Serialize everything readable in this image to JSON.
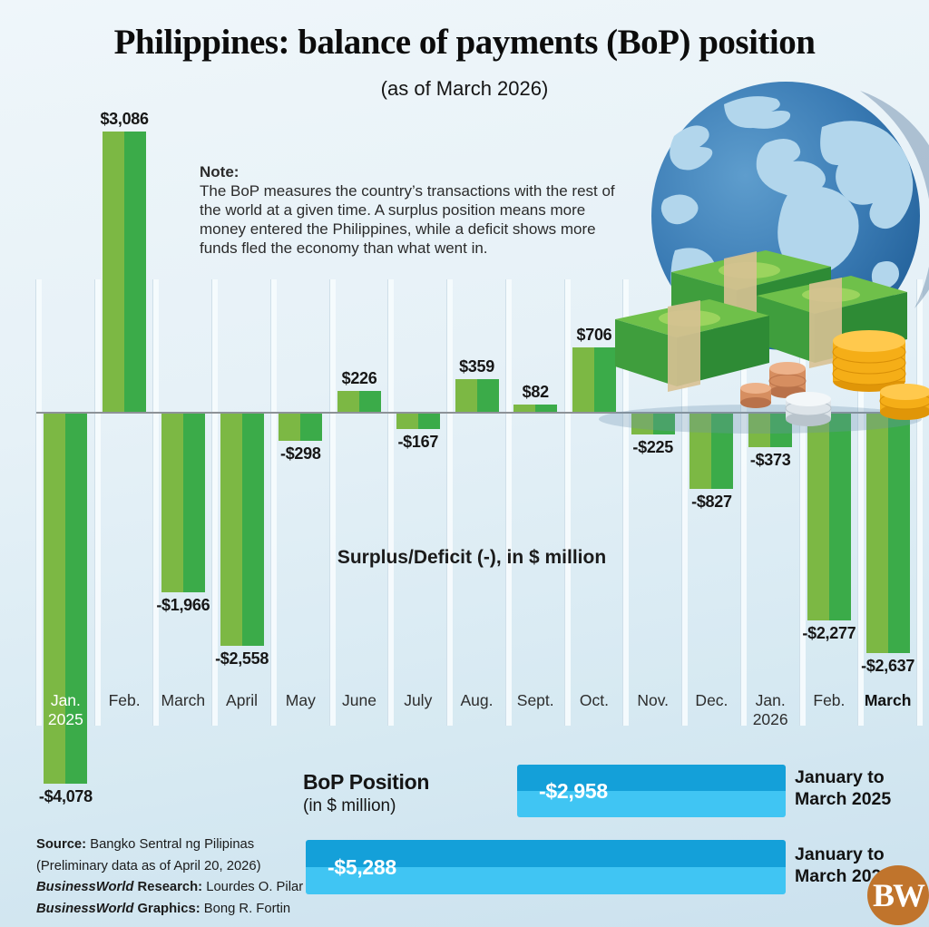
{
  "header": {
    "title": "Philippines: balance of payments (BoP) position",
    "subtitle": "(as of March 2026)"
  },
  "note": {
    "heading": "Note:",
    "body": "The BoP measures the country’s transactions with the rest of the world at a given time. A surplus position means more money entered the Philippines, while a deficit shows more funds fled the economy than what went in."
  },
  "chart_data": {
    "type": "bar",
    "title": "Surplus/Deficit (-), in $ million",
    "categories": [
      "Jan. 2025",
      "Feb.",
      "March",
      "April",
      "May",
      "June",
      "July",
      "Aug.",
      "Sept.",
      "Oct.",
      "Nov.",
      "Dec.",
      "Jan. 2026",
      "Feb.",
      "March"
    ],
    "values": [
      -4078,
      3086,
      -1966,
      -2558,
      -298,
      226,
      -167,
      359,
      82,
      706,
      -225,
      -827,
      -373,
      -2277,
      -2637
    ],
    "value_labels": [
      "-$4,078",
      "$3,086",
      "-$1,966",
      "-$2,558",
      "-$298",
      "$226",
      "-$167",
      "$359",
      "$82",
      "$706",
      "-$225",
      "-$827",
      "-$373",
      "-$2,277",
      "-$2,637"
    ],
    "months_display": [
      {
        "line1": "Jan.",
        "line2": "2025",
        "white": true
      },
      {
        "line1": "Feb."
      },
      {
        "line1": "March"
      },
      {
        "line1": "April"
      },
      {
        "line1": "May"
      },
      {
        "line1": "June"
      },
      {
        "line1": "July"
      },
      {
        "line1": "Aug."
      },
      {
        "line1": "Sept."
      },
      {
        "line1": "Oct."
      },
      {
        "line1": "Nov."
      },
      {
        "line1": "Dec."
      },
      {
        "line1": "Jan.",
        "line2": "2026"
      },
      {
        "line1": "Feb."
      },
      {
        "line1": "March",
        "bold": true
      }
    ],
    "ylim": [
      -4500,
      3500
    ],
    "grid": "vertical-column-separators",
    "colors": {
      "bar_light_green": "#7cb844",
      "bar_dark_green": "#3bab49",
      "zero_line": "#8d9297",
      "label_text": "#171717"
    }
  },
  "summary": {
    "label": "BoP Position",
    "sublabel": "(in $ million)",
    "bar_color_top": "#14a0d9",
    "bar_color_bottom": "#40c5f3",
    "rows": [
      {
        "amount": -2958,
        "value_label": "-$2,958",
        "period_line1": "January to",
        "period_line2": "March 2025"
      },
      {
        "amount": -5288,
        "value_label": "-$5,288",
        "period_line1": "January to",
        "period_line2": "March 2026"
      }
    ]
  },
  "source": {
    "lines": [
      [
        {
          "t": "Source:",
          "b": true
        },
        {
          "t": " Bangko Sentral ng Pilipinas"
        }
      ],
      [
        {
          "t": "(Preliminary data as of April 20, 2026)"
        }
      ],
      [
        {
          "t": "BusinessWorld",
          "b": true,
          "i": true
        },
        {
          "t": " Research:",
          "b": true
        },
        {
          "t": " Lourdes O. Pilar"
        }
      ],
      [
        {
          "t": "BusinessWorld",
          "b": true,
          "i": true
        },
        {
          "t": " Graphics:",
          "b": true
        },
        {
          "t": " Bong R. Fortin"
        }
      ]
    ]
  },
  "logo": {
    "text": "BW",
    "color": "#c0742c"
  },
  "illustration": {
    "name": "globe-with-money-stacks-and-coins",
    "globe_ocean": "#2f6fab",
    "globe_land": "#b2d6ec",
    "money_green": "#3f9e3d",
    "strap_tan": "#d8c193",
    "coin_gold": "#f5ae17",
    "coin_copper": "#d68e60",
    "coin_silver": "#dde4e9"
  }
}
